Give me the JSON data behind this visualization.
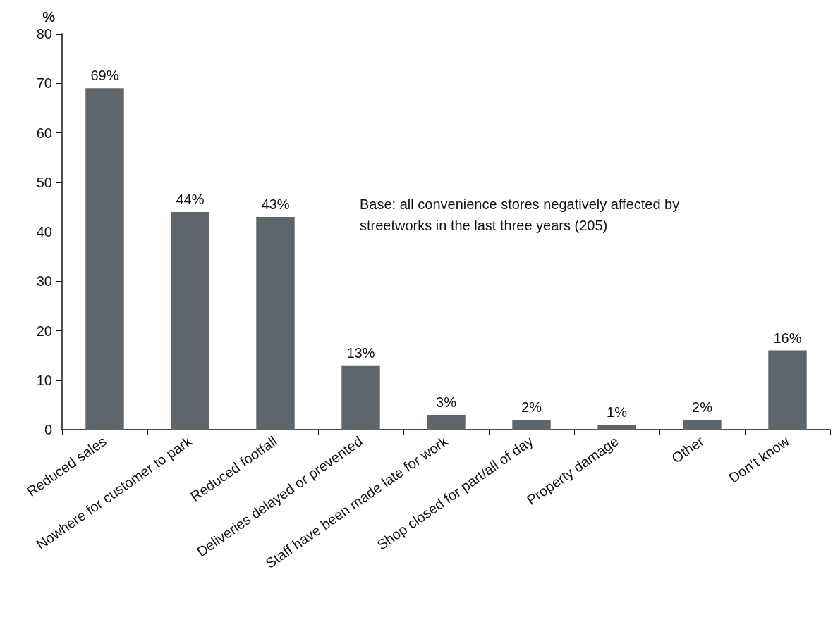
{
  "chart_data": {
    "type": "bar",
    "ylabel": "%",
    "categories": [
      "Reduced sales",
      "Nowhere for customer to park",
      "Reduced footfall",
      "Deliveries delayed or prevented",
      "Staff have been made late for work",
      "Shop closed for part/all of day",
      "Property damage",
      "Other",
      "Don’t know"
    ],
    "values": [
      69,
      44,
      43,
      13,
      3,
      2,
      1,
      2,
      16
    ],
    "value_labels": [
      "69%",
      "44%",
      "43%",
      "13%",
      "3%",
      "2%",
      "1%",
      "2%",
      "16%"
    ],
    "color": "#5f666b",
    "ylim": [
      0,
      80
    ],
    "yticks": [
      0,
      10,
      20,
      30,
      40,
      50,
      60,
      70,
      80
    ],
    "grid": false,
    "annotations": [
      "Base: all convenience stores negatively affected by streetworks in the last three years (205)"
    ]
  }
}
